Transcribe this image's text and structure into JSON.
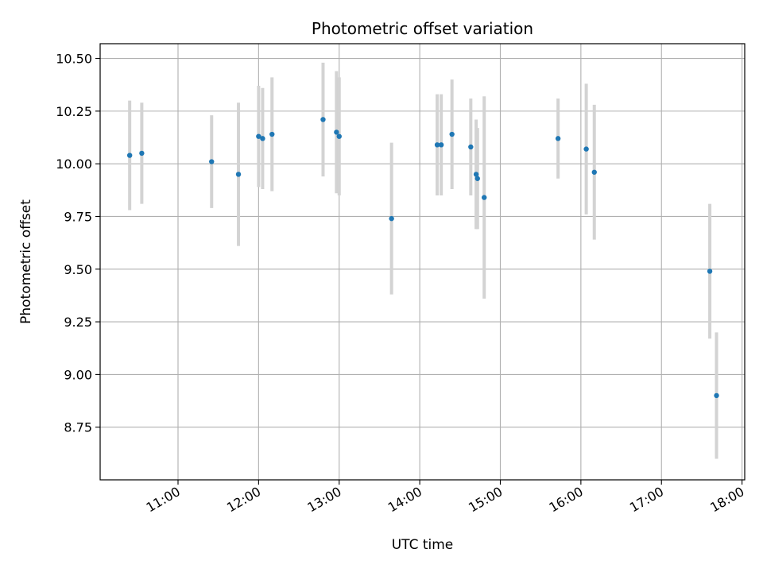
{
  "chart_data": {
    "type": "scatter",
    "title": "Photometric offset variation",
    "xlabel": "UTC time",
    "ylabel": "Photometric offset",
    "x_tick_labels": [
      "11:00",
      "12:00",
      "13:00",
      "14:00",
      "15:00",
      "16:00",
      "17:00",
      "18:00"
    ],
    "y_tick_labels": [
      "8.75",
      "9.00",
      "9.25",
      "9.50",
      "9.75",
      "10.00",
      "10.25",
      "10.50"
    ],
    "xlim": [
      "10:02",
      "18:02"
    ],
    "ylim": [
      8.5,
      10.57
    ],
    "grid": true,
    "colors": {
      "point": "#1f77b4",
      "errorbar": "#d3d3d3",
      "grid": "#b0b0b0"
    },
    "points": [
      {
        "x": "10:24",
        "y": 10.04,
        "err": 0.26
      },
      {
        "x": "10:33",
        "y": 10.05,
        "err": 0.24
      },
      {
        "x": "11:25",
        "y": 10.01,
        "err": 0.22
      },
      {
        "x": "11:45",
        "y": 9.95,
        "err": 0.34
      },
      {
        "x": "12:00",
        "y": 10.13,
        "err": 0.24
      },
      {
        "x": "12:03",
        "y": 10.12,
        "err": 0.24
      },
      {
        "x": "12:10",
        "y": 10.14,
        "err": 0.27
      },
      {
        "x": "12:48",
        "y": 10.21,
        "err": 0.27
      },
      {
        "x": "12:58",
        "y": 10.15,
        "err": 0.29
      },
      {
        "x": "13:00",
        "y": 10.13,
        "err": 0.28
      },
      {
        "x": "13:39",
        "y": 9.74,
        "err": 0.36
      },
      {
        "x": "14:13",
        "y": 10.09,
        "err": 0.24
      },
      {
        "x": "14:16",
        "y": 10.09,
        "err": 0.24
      },
      {
        "x": "14:24",
        "y": 10.14,
        "err": 0.26
      },
      {
        "x": "14:38",
        "y": 10.08,
        "err": 0.23
      },
      {
        "x": "14:42",
        "y": 9.95,
        "err": 0.26
      },
      {
        "x": "14:43",
        "y": 9.93,
        "err": 0.24
      },
      {
        "x": "14:48",
        "y": 9.84,
        "err": 0.48
      },
      {
        "x": "15:43",
        "y": 10.12,
        "err": 0.19
      },
      {
        "x": "16:04",
        "y": 10.07,
        "err": 0.31
      },
      {
        "x": "16:10",
        "y": 9.96,
        "err": 0.32
      },
      {
        "x": "17:36",
        "y": 9.49,
        "err": 0.32
      },
      {
        "x": "17:41",
        "y": 8.9,
        "err": 0.3
      }
    ]
  }
}
